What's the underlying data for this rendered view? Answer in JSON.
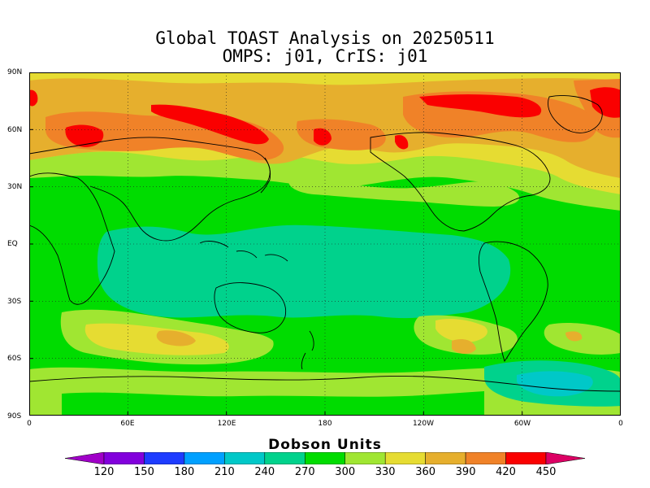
{
  "title_line1": "Global TOAST Analysis on 20250511",
  "title_line2": "OMPS: j01, CrIS: j01",
  "y_ticks": [
    "90N",
    "60N",
    "30N",
    "EQ",
    "30S",
    "60S",
    "90S"
  ],
  "x_ticks": [
    "0",
    "60E",
    "120E",
    "180",
    "120W",
    "60W",
    "0"
  ],
  "colorbar": {
    "title": "Dobson Units",
    "labels": [
      "120",
      "150",
      "180",
      "210",
      "240",
      "270",
      "300",
      "330",
      "360",
      "390",
      "420",
      "450"
    ],
    "colors": [
      "#a000c8",
      "#8200dc",
      "#1e3cff",
      "#00a0ff",
      "#00c8c8",
      "#00d28c",
      "#00dc00",
      "#a0e632",
      "#e6dc32",
      "#e6af2d",
      "#f08228",
      "#fa0000",
      "#dc0064"
    ]
  },
  "map": {
    "projection": "cylindrical-equidistant",
    "lon_range": [
      0,
      360
    ],
    "lat_range": [
      -90,
      90
    ],
    "grid": "dotted",
    "variable": "Total column ozone"
  }
}
